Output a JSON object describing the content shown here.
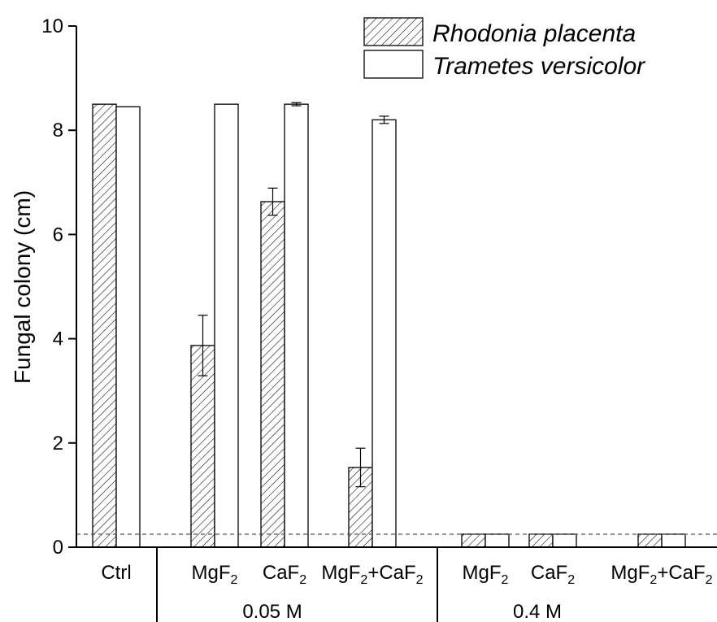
{
  "chart_data": {
    "type": "bar",
    "title": "",
    "ylabel": "Fungal colony (cm)",
    "xlabel": "",
    "ylim": [
      0,
      10
    ],
    "yticks": [
      0,
      2,
      4,
      6,
      8,
      10
    ],
    "ytick_labels": [
      "0",
      "2",
      "4",
      "6",
      "8",
      "10"
    ],
    "reference_line": 0.25,
    "categories": [
      {
        "base": "Ctrl",
        "sub": ""
      },
      {
        "base": "MgF",
        "sub": "2"
      },
      {
        "base": "CaF",
        "sub": "2"
      },
      {
        "base": "MgF",
        "sub": "2",
        "mid": "+CaF",
        "sub2": "2"
      },
      {
        "base": "MgF",
        "sub": "2"
      },
      {
        "base": "CaF",
        "sub": "2"
      },
      {
        "base": "MgF",
        "sub": "2",
        "mid": "+CaF",
        "sub2": "2"
      }
    ],
    "groups": [
      {
        "label": "0.05 M",
        "categories": [
          1,
          2,
          3
        ]
      },
      {
        "label": "0.4 M",
        "categories": [
          4,
          5,
          6
        ]
      }
    ],
    "series": [
      {
        "name": "Rhodonia placenta",
        "pattern": "hatched",
        "values": [
          8.5,
          3.87,
          6.63,
          1.53,
          0.25,
          0.25,
          0.25
        ],
        "errors": [
          0,
          0.58,
          0.26,
          0.37,
          0,
          0,
          0
        ]
      },
      {
        "name": "Trametes versicolor",
        "pattern": "open",
        "values": [
          8.45,
          8.5,
          8.5,
          8.2,
          0.25,
          0.25,
          0.25
        ],
        "errors": [
          0,
          0,
          0.03,
          0.07,
          0,
          0,
          0
        ]
      }
    ],
    "legend": {
      "position": "top-right"
    },
    "grid": false
  }
}
